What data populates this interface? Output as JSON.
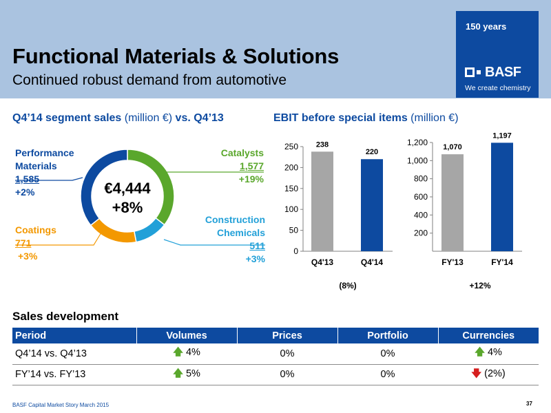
{
  "header": {
    "title": "Functional Materials & Solutions",
    "subtitle": "Continued robust demand from automotive",
    "badge": "150 years",
    "brand": "BASF",
    "slogan": "We create chemistry"
  },
  "sections": {
    "sales": {
      "bold_a": "Q4’14 segment sales",
      "normal": " (million €) ",
      "bold_b": "vs. Q4’13"
    },
    "ebit": {
      "bold": "EBIT before special items",
      "normal": " (million €)"
    }
  },
  "chart_data": [
    {
      "type": "pie",
      "variant": "donut",
      "center_value": "€4,444",
      "center_change": "+8%",
      "slices": [
        {
          "name": "Catalysts",
          "value": 1577,
          "value_label": "1,577",
          "change": "+19%",
          "color": "#5aa72c"
        },
        {
          "name": "Construction Chemicals",
          "name_lines": [
            "Construction",
            "Chemicals"
          ],
          "value": 511,
          "value_label": "511",
          "change": "+3%",
          "color": "#22a0d8"
        },
        {
          "name": "Coatings",
          "value": 771,
          "value_label": "771",
          "change": "+3%",
          "color": "#f39800"
        },
        {
          "name": "Performance Materials",
          "name_lines": [
            "Performance",
            "Materials"
          ],
          "value": 1585,
          "value_label": "1,585",
          "change": "+2%",
          "color": "#0d4aa0"
        }
      ]
    },
    {
      "type": "bar",
      "categories": [
        "Q4'13",
        "Q4'14"
      ],
      "values": [
        238,
        220
      ],
      "value_labels": [
        "238",
        "220"
      ],
      "colors": [
        "#a6a6a6",
        "#0d4aa0"
      ],
      "ylim": [
        0,
        250
      ],
      "yticks": [
        0,
        50,
        100,
        150,
        200,
        250
      ],
      "ytick_labels": [
        "0",
        "50",
        "100",
        "150",
        "200",
        "250"
      ],
      "change": "(8%)"
    },
    {
      "type": "bar",
      "categories": [
        "FY'13",
        "FY'14"
      ],
      "values": [
        1070,
        1197
      ],
      "value_labels": [
        "1,070",
        "1,197"
      ],
      "colors": [
        "#a6a6a6",
        "#0d4aa0"
      ],
      "ylim": [
        0,
        1200
      ],
      "yticks": [
        200,
        400,
        600,
        800,
        1000,
        1200
      ],
      "ytick_labels": [
        "200",
        "400",
        "600",
        "800",
        "1,000",
        "1,200"
      ],
      "change": "+12%"
    }
  ],
  "sales_development": {
    "title": "Sales development",
    "columns": [
      "Period",
      "Volumes",
      "Prices",
      "Portfolio",
      "Currencies"
    ],
    "rows": [
      {
        "period": "Q4’14 vs. Q4’13",
        "volumes": {
          "arrow": "up",
          "text": "4%"
        },
        "prices": "0%",
        "portfolio": "0%",
        "currencies": {
          "arrow": "up",
          "text": "4%"
        }
      },
      {
        "period": "FY’14 vs. FY’13",
        "volumes": {
          "arrow": "up",
          "text": "5%"
        },
        "prices": "0%",
        "portfolio": "0%",
        "currencies": {
          "arrow": "down",
          "text": "(2%)"
        }
      }
    ]
  },
  "footer": {
    "text": "BASF Capital Market Story March 2015",
    "page": "37"
  }
}
